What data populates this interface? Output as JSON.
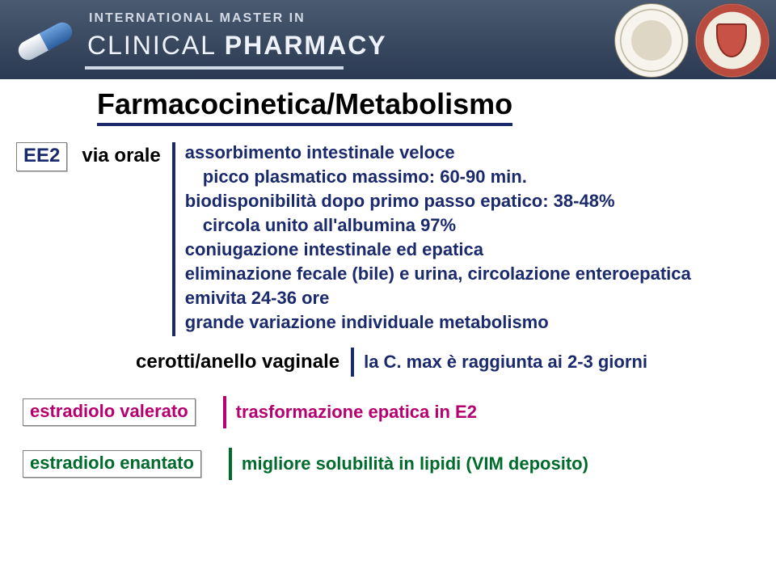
{
  "header": {
    "pretitle": "INTERNATIONAL MASTER IN",
    "title_part1": "CLINICAL ",
    "title_part2": "PHARMACY"
  },
  "main_title": "Farmacocinetica/Metabolismo",
  "ee2": {
    "tag": "EE2",
    "via_label": "via orale",
    "lines": {
      "l1": "assorbimento intestinale veloce",
      "l2": "picco plasmatico massimo: 60-90 min.",
      "l3": "biodisponibilità dopo primo passo epatico: 38-48%",
      "l4": "circola unito all'albumina 97%",
      "l5": "coniugazione intestinale ed epatica",
      "l6": "eliminazione fecale (bile) e urina, circolazione enteroepatica",
      "l7": "emivita 24-36 ore",
      "l8": "grande variazione individuale metabolismo"
    },
    "cerotti_label": "cerotti/anello vaginale",
    "cerotti_text": "la C. max è raggiunta ai 2-3 giorni"
  },
  "valerato": {
    "tag": "estradiolo valerato",
    "text": "trasformazione epatica in E2"
  },
  "enantato": {
    "tag": "estradiolo enantato",
    "text": "migliore solubilità in lipidi (VIM deposito)"
  },
  "colors": {
    "navy": "#1a2a6c",
    "magenta": "#b6006f",
    "green": "#006b2c"
  }
}
